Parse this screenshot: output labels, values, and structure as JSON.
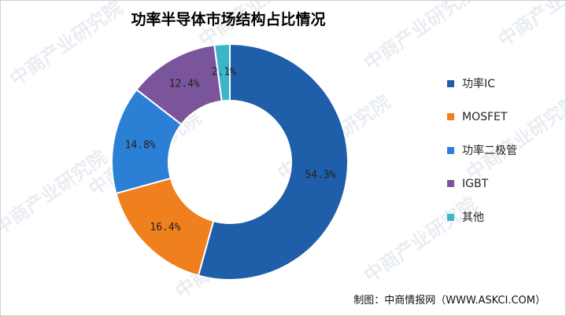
{
  "watermark_text": "中商产业研究院",
  "chart_data": {
    "type": "pie",
    "variant": "donut",
    "title": "功率半导体市场结构占比情况",
    "categories": [
      "功率IC",
      "MOSFET",
      "功率二极管",
      "IGBT",
      "其他"
    ],
    "values": [
      54.3,
      16.4,
      14.8,
      12.4,
      2.1
    ],
    "value_labels": [
      "54.3%",
      "16.4%",
      "14.8%",
      "12.4%",
      "2.1%"
    ],
    "colors": [
      "#1f5ea8",
      "#f07f1e",
      "#2b80d6",
      "#7a559c",
      "#3db5c7"
    ],
    "legend": "right",
    "source": "制图：中商情报网（WWW.ASKCI.COM）"
  }
}
